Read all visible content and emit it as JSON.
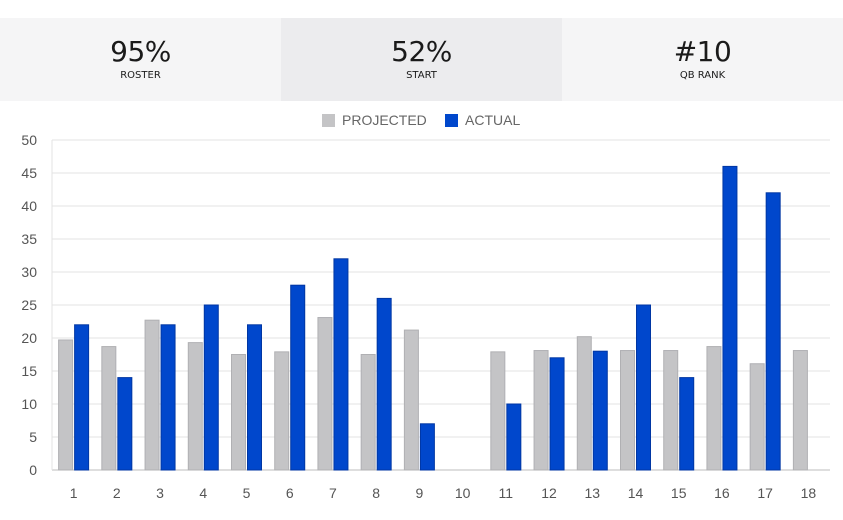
{
  "stats": [
    {
      "value": "95%",
      "label": "ROSTER"
    },
    {
      "value": "52%",
      "label": "START"
    },
    {
      "value": "#10",
      "label": "QB RANK"
    }
  ],
  "colors": {
    "projected": "#c4c4c6",
    "actual": "#0047cc",
    "grid": "#e3e3e3",
    "axis": "#bdbdbd"
  },
  "chart_data": {
    "type": "bar",
    "categories": [
      "1",
      "2",
      "3",
      "4",
      "5",
      "6",
      "7",
      "8",
      "9",
      "10",
      "11",
      "12",
      "13",
      "14",
      "15",
      "16",
      "17",
      "18"
    ],
    "series": [
      {
        "name": "PROJECTED",
        "values": [
          19.7,
          18.7,
          22.7,
          19.3,
          17.5,
          17.9,
          23.1,
          17.5,
          21.2,
          null,
          17.9,
          18.1,
          20.2,
          18.1,
          18.1,
          18.7,
          16.1,
          18.1
        ]
      },
      {
        "name": "ACTUAL",
        "values": [
          22,
          14,
          22,
          25,
          22,
          28,
          32,
          26,
          7,
          null,
          10,
          17,
          18,
          25,
          14,
          46,
          42,
          null
        ]
      }
    ],
    "yticks": [
      0,
      5,
      10,
      15,
      20,
      25,
      30,
      35,
      40,
      45,
      50
    ],
    "ylim": [
      0,
      50
    ],
    "grid": true,
    "legend": "top-center"
  }
}
